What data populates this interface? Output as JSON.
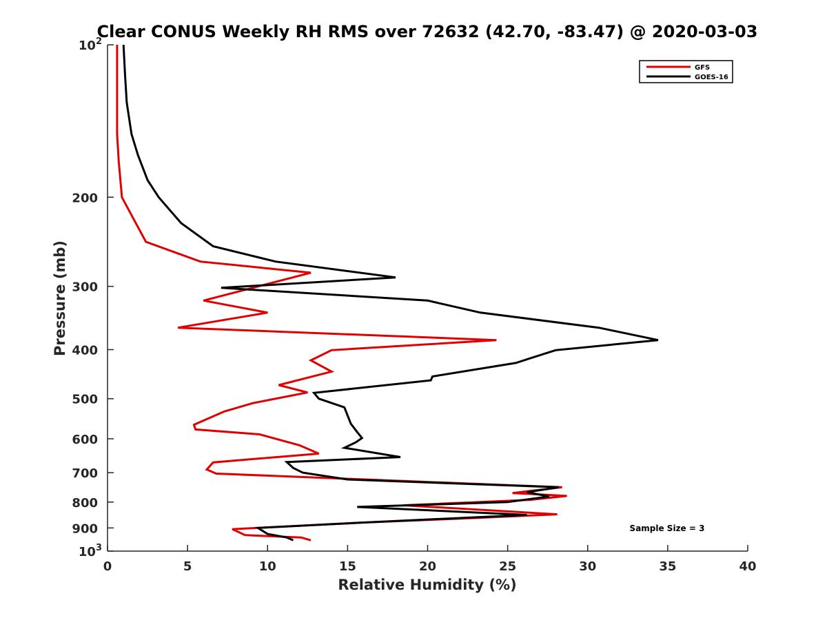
{
  "chart_data": {
    "type": "line",
    "title": "Clear CONUS Weekly RH RMS over 72632 (42.70, -83.47) @ 2020-03-03",
    "xlabel": "Relative Humidity (%)",
    "ylabel": "Pressure (mb)",
    "xlim": [
      0,
      40
    ],
    "ylim": [
      100,
      1000
    ],
    "y_scale": "log",
    "y_reversed": true,
    "xticks": [
      0,
      5,
      10,
      15,
      20,
      25,
      30,
      35,
      40
    ],
    "yticks": [
      {
        "value": 100,
        "label": "10",
        "sup": "2"
      },
      {
        "value": 200,
        "label": "200"
      },
      {
        "value": 300,
        "label": "300"
      },
      {
        "value": 400,
        "label": "400"
      },
      {
        "value": 500,
        "label": "500"
      },
      {
        "value": 600,
        "label": "600"
      },
      {
        "value": 700,
        "label": "700"
      },
      {
        "value": 800,
        "label": "800"
      },
      {
        "value": 900,
        "label": "900"
      },
      {
        "value": 1000,
        "label": "10",
        "sup": "3"
      }
    ],
    "legend_position": "top-right",
    "grid": false,
    "annotation": "Sample Size = 3",
    "series": [
      {
        "name": "GFS",
        "color": "#e00000",
        "points": [
          [
            0.6,
            100
          ],
          [
            0.6,
            115
          ],
          [
            0.6,
            130
          ],
          [
            0.6,
            150
          ],
          [
            0.7,
            170
          ],
          [
            0.9,
            200
          ],
          [
            1.6,
            220
          ],
          [
            2.4,
            245
          ],
          [
            5.8,
            268
          ],
          [
            12.7,
            282
          ],
          [
            6.0,
            320
          ],
          [
            10.0,
            338
          ],
          [
            4.4,
            362
          ],
          [
            24.3,
            383
          ],
          [
            14.0,
            401
          ],
          [
            12.7,
            420
          ],
          [
            14.0,
            442
          ],
          [
            10.7,
            470
          ],
          [
            12.5,
            486
          ],
          [
            9.1,
            510
          ],
          [
            7.3,
            530
          ],
          [
            5.4,
            563
          ],
          [
            5.5,
            575
          ],
          [
            9.5,
            588
          ],
          [
            12.0,
            618
          ],
          [
            13.2,
            642
          ],
          [
            6.6,
            668
          ],
          [
            6.2,
            690
          ],
          [
            6.8,
            703
          ],
          [
            28.4,
            748
          ],
          [
            25.3,
            768
          ],
          [
            28.7,
            778
          ],
          [
            26.4,
            792
          ],
          [
            18.5,
            812
          ],
          [
            28.1,
            846
          ],
          [
            23.0,
            860
          ],
          [
            16.0,
            878
          ],
          [
            7.8,
            905
          ],
          [
            8.6,
            930
          ],
          [
            12.1,
            940
          ],
          [
            12.7,
            952
          ]
        ]
      },
      {
        "name": "GOES-16",
        "color": "#000000",
        "points": [
          [
            1.0,
            100
          ],
          [
            1.1,
            115
          ],
          [
            1.2,
            130
          ],
          [
            1.5,
            150
          ],
          [
            1.9,
            165
          ],
          [
            2.5,
            185
          ],
          [
            3.2,
            200
          ],
          [
            4.6,
            225
          ],
          [
            6.6,
            250
          ],
          [
            10.5,
            268
          ],
          [
            18.0,
            288
          ],
          [
            7.1,
            302
          ],
          [
            20.0,
            320
          ],
          [
            23.3,
            338
          ],
          [
            30.7,
            362
          ],
          [
            34.4,
            383
          ],
          [
            28.0,
            401
          ],
          [
            25.5,
            425
          ],
          [
            20.3,
            452
          ],
          [
            20.2,
            460
          ],
          [
            12.9,
            487
          ],
          [
            13.2,
            500
          ],
          [
            14.8,
            520
          ],
          [
            15.2,
            560
          ],
          [
            15.6,
            582
          ],
          [
            15.9,
            598
          ],
          [
            15.5,
            610
          ],
          [
            14.8,
            625
          ],
          [
            18.3,
            652
          ],
          [
            11.2,
            667
          ],
          [
            11.6,
            685
          ],
          [
            12.2,
            700
          ],
          [
            15.0,
            722
          ],
          [
            28.2,
            748
          ],
          [
            26.2,
            765
          ],
          [
            27.6,
            780
          ],
          [
            25.0,
            800
          ],
          [
            15.6,
            818
          ],
          [
            26.2,
            848
          ],
          [
            16.0,
            878
          ],
          [
            9.4,
            900
          ],
          [
            10.0,
            925
          ],
          [
            11.2,
            940
          ],
          [
            11.6,
            952
          ]
        ]
      }
    ]
  }
}
